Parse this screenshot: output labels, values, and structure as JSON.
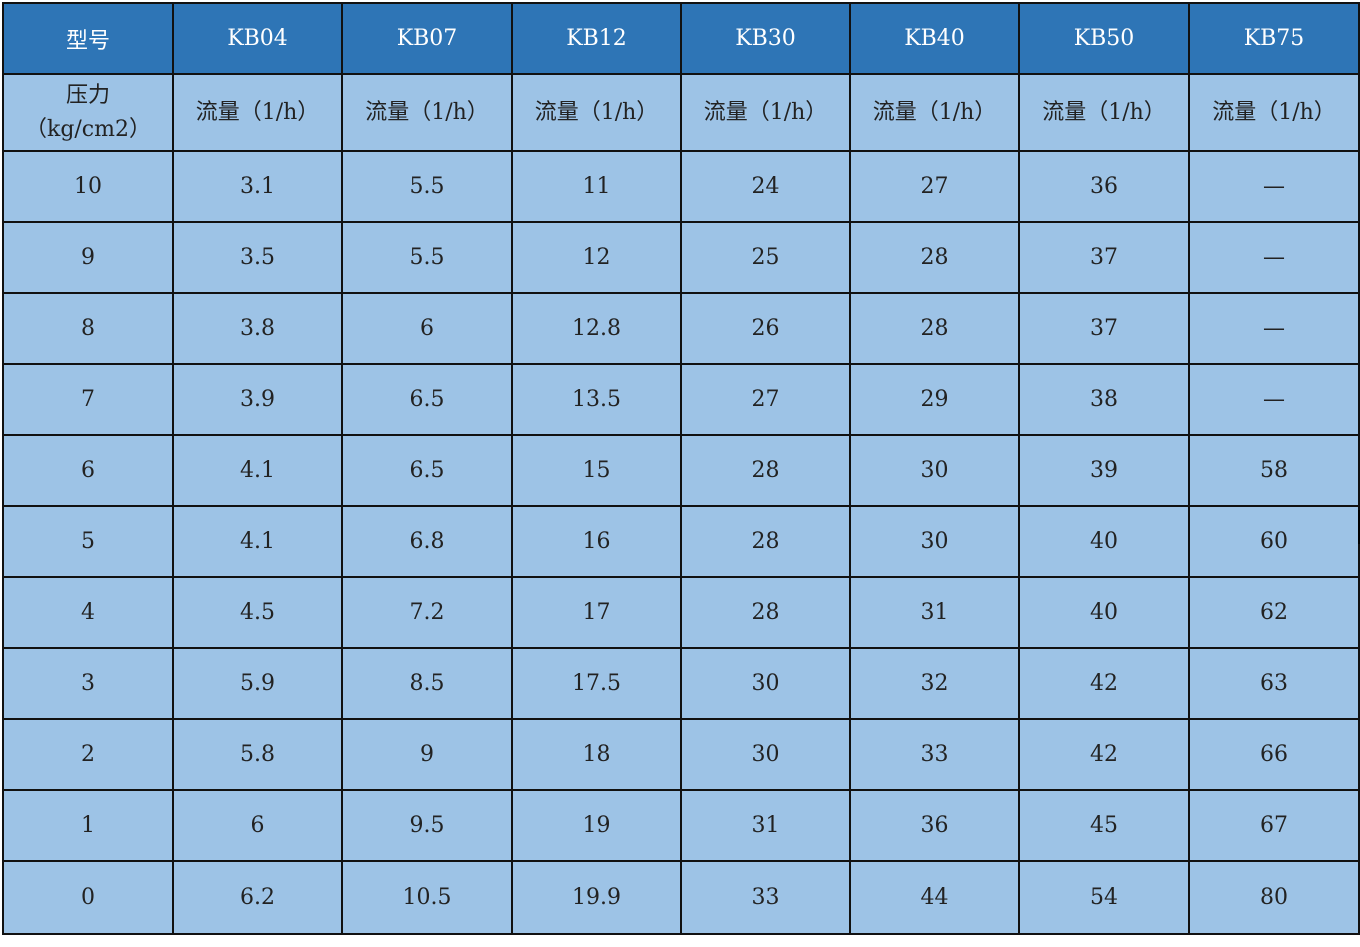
{
  "table": {
    "header": [
      "型号",
      "KB04",
      "KB07",
      "KB12",
      "KB30",
      "KB40",
      "KB50",
      "KB75"
    ],
    "subheader": {
      "pressure_label": "压力",
      "pressure_unit": "（kg/cm2）",
      "flow_label": "流量（1/h）"
    },
    "rows": [
      [
        "10",
        "3.1",
        "5.5",
        "11",
        "24",
        "27",
        "36",
        "—"
      ],
      [
        "9",
        "3.5",
        "5.5",
        "12",
        "25",
        "28",
        "37",
        "—"
      ],
      [
        "8",
        "3.8",
        "6",
        "12.8",
        "26",
        "28",
        "37",
        "—"
      ],
      [
        "7",
        "3.9",
        "6.5",
        "13.5",
        "27",
        "29",
        "38",
        "—"
      ],
      [
        "6",
        "4.1",
        "6.5",
        "15",
        "28",
        "30",
        "39",
        "58"
      ],
      [
        "5",
        "4.1",
        "6.8",
        "16",
        "28",
        "30",
        "40",
        "60"
      ],
      [
        "4",
        "4.5",
        "7.2",
        "17",
        "28",
        "31",
        "40",
        "62"
      ],
      [
        "3",
        "5.9",
        "8.5",
        "17.5",
        "30",
        "32",
        "42",
        "63"
      ],
      [
        "2",
        "5.8",
        "9",
        "18",
        "30",
        "33",
        "42",
        "66"
      ],
      [
        "1",
        "6",
        "9.5",
        "19",
        "31",
        "36",
        "45",
        "67"
      ],
      [
        "0",
        "6.2",
        "10.5",
        "19.9",
        "33",
        "44",
        "54",
        "80"
      ]
    ]
  },
  "colors": {
    "header_bg": "#2e75b6",
    "cell_bg": "#9dc3e6",
    "border": "#111111"
  }
}
